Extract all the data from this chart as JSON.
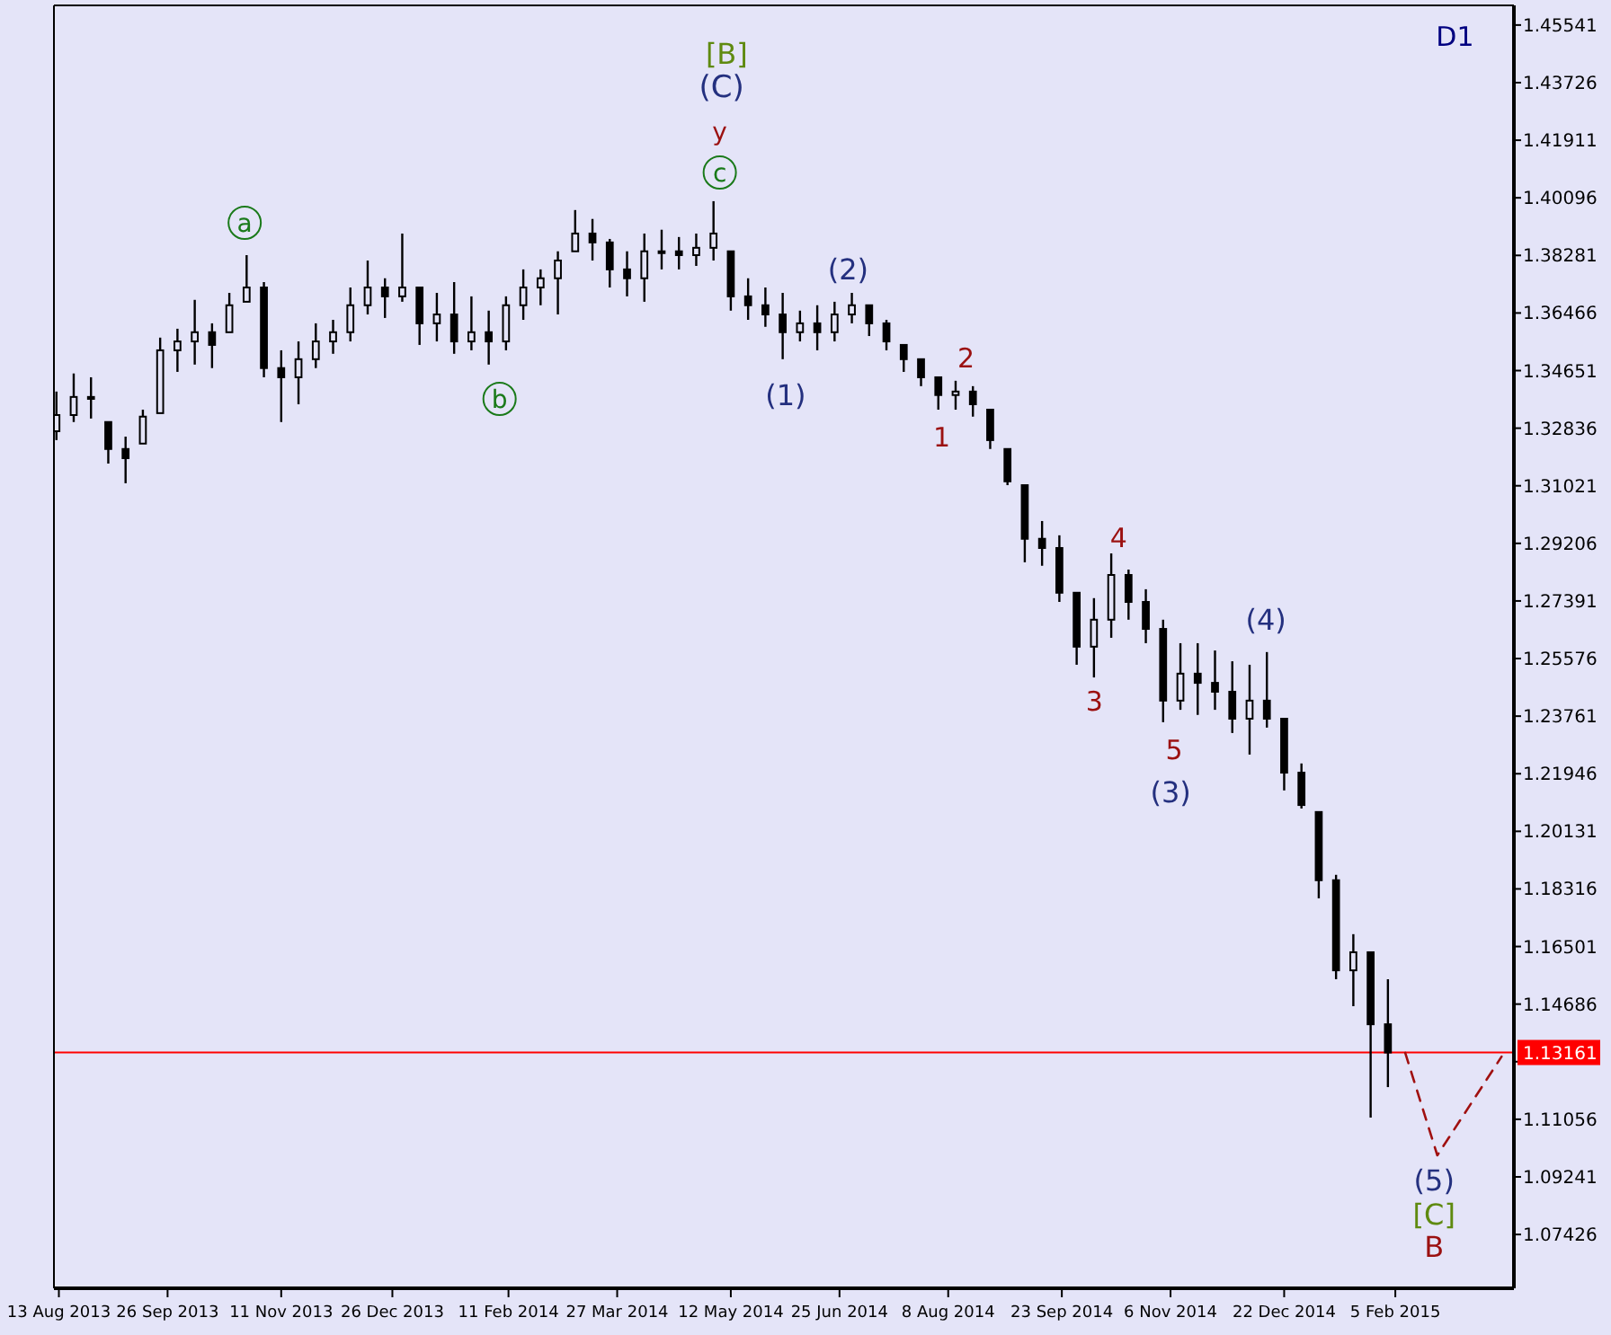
{
  "chart_data": {
    "type": "candlestick",
    "color": "#000000",
    "x": [
      "2013-08-12",
      "2013-08-19",
      "2013-08-26",
      "2013-09-02",
      "2013-09-09",
      "2013-09-16",
      "2013-09-23",
      "2013-09-30",
      "2013-10-07",
      "2013-10-14",
      "2013-10-21",
      "2013-10-28",
      "2013-11-04",
      "2013-11-11",
      "2013-11-18",
      "2013-11-25",
      "2013-12-02",
      "2013-12-09",
      "2013-12-16",
      "2013-12-23",
      "2013-12-30",
      "2014-01-06",
      "2014-01-13",
      "2014-01-20",
      "2014-01-27",
      "2014-02-03",
      "2014-02-10",
      "2014-02-17",
      "2014-02-24",
      "2014-03-03",
      "2014-03-10",
      "2014-03-17",
      "2014-03-24",
      "2014-03-31",
      "2014-04-07",
      "2014-04-14",
      "2014-04-21",
      "2014-04-28",
      "2014-05-05",
      "2014-05-12",
      "2014-05-19",
      "2014-05-26",
      "2014-06-02",
      "2014-06-09",
      "2014-06-16",
      "2014-06-23",
      "2014-06-30",
      "2014-07-07",
      "2014-07-14",
      "2014-07-21",
      "2014-07-28",
      "2014-08-04",
      "2014-08-11",
      "2014-08-18",
      "2014-08-25",
      "2014-09-01",
      "2014-09-08",
      "2014-09-15",
      "2014-09-22",
      "2014-09-29",
      "2014-10-06",
      "2014-10-13",
      "2014-10-20",
      "2014-10-27",
      "2014-11-03",
      "2014-11-10",
      "2014-11-17",
      "2014-11-24",
      "2014-12-01",
      "2014-12-08",
      "2014-12-15",
      "2014-12-22",
      "2014-12-29",
      "2015-01-05",
      "2015-01-12",
      "2015-01-19",
      "2015-01-26",
      "2015-02-02"
    ],
    "ohlc": [
      [
        1.3274,
        1.3399,
        1.3246,
        1.3325
      ],
      [
        1.3325,
        1.3456,
        1.3303,
        1.3382
      ],
      [
        1.3382,
        1.3444,
        1.3314,
        1.3376
      ],
      [
        1.3303,
        1.3303,
        1.3172,
        1.3218
      ],
      [
        1.3218,
        1.3257,
        1.311,
        1.3189
      ],
      [
        1.3235,
        1.3342,
        1.3235,
        1.332
      ],
      [
        1.3331,
        1.3569,
        1.3331,
        1.3529
      ],
      [
        1.3529,
        1.3597,
        1.3461,
        1.3557
      ],
      [
        1.3557,
        1.3688,
        1.3484,
        1.3586
      ],
      [
        1.3586,
        1.3614,
        1.3473,
        1.3546
      ],
      [
        1.3586,
        1.371,
        1.3586,
        1.3671
      ],
      [
        1.3682,
        1.3829,
        1.3682,
        1.3727
      ],
      [
        1.3727,
        1.3744,
        1.3444,
        1.3473
      ],
      [
        1.3473,
        1.3529,
        1.3303,
        1.3444
      ],
      [
        1.3444,
        1.3557,
        1.3359,
        1.3501
      ],
      [
        1.3501,
        1.3614,
        1.3473,
        1.3557
      ],
      [
        1.3557,
        1.3625,
        1.3518,
        1.3586
      ],
      [
        1.3586,
        1.3727,
        1.3557,
        1.3671
      ],
      [
        1.3671,
        1.3812,
        1.3642,
        1.3727
      ],
      [
        1.3727,
        1.3756,
        1.3631,
        1.3699
      ],
      [
        1.3699,
        1.3897,
        1.3682,
        1.3727
      ],
      [
        1.3727,
        1.3727,
        1.3546,
        1.3614
      ],
      [
        1.3614,
        1.371,
        1.3557,
        1.3642
      ],
      [
        1.3642,
        1.3744,
        1.3518,
        1.3557
      ],
      [
        1.3557,
        1.3699,
        1.3529,
        1.3586
      ],
      [
        1.3586,
        1.3654,
        1.3484,
        1.3557
      ],
      [
        1.3557,
        1.3699,
        1.3529,
        1.3671
      ],
      [
        1.3671,
        1.3784,
        1.3625,
        1.3727
      ],
      [
        1.3727,
        1.3784,
        1.3671,
        1.3756
      ],
      [
        1.3756,
        1.3841,
        1.3642,
        1.3812
      ],
      [
        1.3841,
        1.3971,
        1.3841,
        1.3897
      ],
      [
        1.3897,
        1.3943,
        1.3812,
        1.3869
      ],
      [
        1.3869,
        1.388,
        1.3727,
        1.3784
      ],
      [
        1.3784,
        1.3841,
        1.3699,
        1.3756
      ],
      [
        1.3756,
        1.3897,
        1.3682,
        1.3841
      ],
      [
        1.3841,
        1.3909,
        1.3784,
        1.3841
      ],
      [
        1.3841,
        1.3886,
        1.3784,
        1.3829
      ],
      [
        1.3829,
        1.3897,
        1.3795,
        1.3852
      ],
      [
        1.3852,
        1.3999,
        1.3812,
        1.3897
      ],
      [
        1.3841,
        1.3841,
        1.3654,
        1.3699
      ],
      [
        1.3699,
        1.3756,
        1.3625,
        1.3671
      ],
      [
        1.3671,
        1.3727,
        1.3603,
        1.3642
      ],
      [
        1.3642,
        1.371,
        1.3501,
        1.3586
      ],
      [
        1.3586,
        1.3654,
        1.3557,
        1.3614
      ],
      [
        1.3614,
        1.3671,
        1.3529,
        1.3586
      ],
      [
        1.3586,
        1.3682,
        1.3557,
        1.3642
      ],
      [
        1.3642,
        1.371,
        1.3614,
        1.3671
      ],
      [
        1.3671,
        1.3671,
        1.3574,
        1.3614
      ],
      [
        1.3614,
        1.3625,
        1.3529,
        1.3557
      ],
      [
        1.3546,
        1.3546,
        1.3461,
        1.3501
      ],
      [
        1.3501,
        1.3501,
        1.3416,
        1.3444
      ],
      [
        1.3444,
        1.3444,
        1.3342,
        1.3388
      ],
      [
        1.3388,
        1.3433,
        1.3342,
        1.3399
      ],
      [
        1.3399,
        1.3416,
        1.332,
        1.3359
      ],
      [
        1.3342,
        1.3342,
        1.3218,
        1.3246
      ],
      [
        1.3218,
        1.3218,
        1.3104,
        1.3116
      ],
      [
        1.3104,
        1.3104,
        1.2861,
        1.2935
      ],
      [
        1.2935,
        1.2991,
        1.285,
        1.2906
      ],
      [
        1.2906,
        1.2946,
        1.2736,
        1.2765
      ],
      [
        1.2765,
        1.2765,
        1.2538,
        1.2595
      ],
      [
        1.2595,
        1.2748,
        1.2498,
        1.268
      ],
      [
        1.268,
        1.2889,
        1.2623,
        1.2821
      ],
      [
        1.2821,
        1.2838,
        1.268,
        1.2736
      ],
      [
        1.2736,
        1.2776,
        1.2606,
        1.2651
      ],
      [
        1.2651,
        1.268,
        1.2357,
        1.2425
      ],
      [
        1.2425,
        1.2606,
        1.2396,
        1.251
      ],
      [
        1.251,
        1.2606,
        1.238,
        1.2481
      ],
      [
        1.2481,
        1.2583,
        1.2396,
        1.2453
      ],
      [
        1.2453,
        1.2549,
        1.2323,
        1.2368
      ],
      [
        1.2368,
        1.2538,
        1.2255,
        1.2425
      ],
      [
        1.2425,
        1.2578,
        1.234,
        1.2368
      ],
      [
        1.2368,
        1.2368,
        1.2142,
        1.2198
      ],
      [
        1.2198,
        1.2227,
        1.2085,
        1.2096
      ],
      [
        1.2074,
        1.2074,
        1.1802,
        1.1859
      ],
      [
        1.1859,
        1.1876,
        1.1547,
        1.1575
      ],
      [
        1.1575,
        1.1689,
        1.1462,
        1.1632
      ],
      [
        1.1632,
        1.1632,
        1.1111,
        1.1405
      ],
      [
        1.1405,
        1.1547,
        1.1207,
        1.1316
      ]
    ],
    "series": [
      {
        "type": "line",
        "x": [
          "2015-02-09",
          "2015-02-22",
          "2015-03-20"
        ],
        "values": [
          1.1315,
          1.0992,
          1.1303
        ],
        "color": "#a01010",
        "line_style": "dashed"
      }
    ],
    "xlim": [
      "2013-08-11",
      "2015-03-25"
    ],
    "xticks": [
      {
        "value": "2013-08-13",
        "label": "13 Aug 2013"
      },
      {
        "value": "2013-09-26",
        "label": "26 Sep 2013"
      },
      {
        "value": "2013-11-11",
        "label": "11 Nov 2013"
      },
      {
        "value": "2013-12-26",
        "label": "26 Dec 2013"
      },
      {
        "value": "2014-02-11",
        "label": "11 Feb 2014"
      },
      {
        "value": "2014-03-27",
        "label": "27 Mar 2014"
      },
      {
        "value": "2014-05-12",
        "label": "12 May 2014"
      },
      {
        "value": "2014-06-25",
        "label": "25 Jun 2014"
      },
      {
        "value": "2014-08-08",
        "label": "8 Aug 2014"
      },
      {
        "value": "2014-09-23",
        "label": "23 Sep 2014"
      },
      {
        "value": "2014-11-06",
        "label": "6 Nov 2014"
      },
      {
        "value": "2014-12-22",
        "label": "22 Dec 2014"
      },
      {
        "value": "2015-02-05",
        "label": "5 Feb 2015"
      }
    ],
    "ylim": [
      1.0573,
      1.4616
    ],
    "yticks": [
      1.45541,
      1.43726,
      1.41911,
      1.40096,
      1.38281,
      1.36466,
      1.34651,
      1.32836,
      1.31021,
      1.29206,
      1.27391,
      1.25576,
      1.23761,
      1.21946,
      1.20131,
      1.18316,
      1.16501,
      1.14686,
      {
        "value": 1.12871,
        "label": null
      },
      1.11056,
      1.09241,
      1.07426
    ],
    "grid": false,
    "ref_lines": [
      {
        "axis": "y",
        "value": 1.13161,
        "label": "1.13161",
        "color": "#ff0000"
      }
    ],
    "annotations": [
      "D1",
      "[B]",
      "(C)",
      "y",
      "c",
      "a",
      "b",
      "(1)",
      "(2)",
      "1",
      "2",
      "3",
      "4",
      "5",
      "(3)",
      "(4)",
      "(5)",
      "[C]",
      "B"
    ]
  }
}
